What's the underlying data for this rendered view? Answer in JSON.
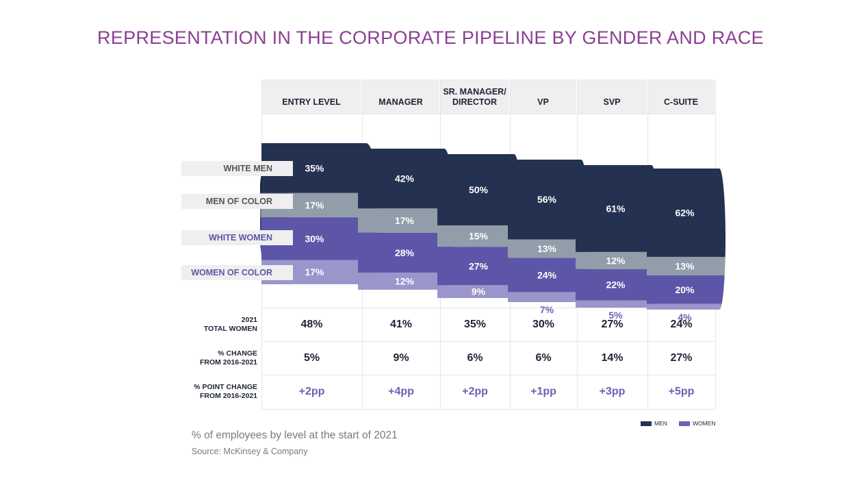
{
  "title": "REPRESENTATION IN THE CORPORATE PIPELINE BY GENDER AND RACE",
  "chart_data": {
    "type": "bar",
    "stacked": true,
    "title": "REPRESENTATION IN THE CORPORATE PIPELINE BY GENDER AND RACE",
    "categories": [
      "ENTRY LEVEL",
      "MANAGER",
      "SR. MANAGER/ DIRECTOR",
      "VP",
      "SVP",
      "C-SUITE"
    ],
    "series": [
      {
        "name": "WHITE MEN",
        "values": [
          35,
          42,
          50,
          56,
          61,
          62
        ],
        "color": "#243150",
        "labels": [
          "35%",
          "42%",
          "50%",
          "56%",
          "61%",
          "62%"
        ]
      },
      {
        "name": "MEN OF COLOR",
        "values": [
          17,
          17,
          15,
          13,
          12,
          13
        ],
        "color": "#929daa",
        "labels": [
          "17%",
          "17%",
          "15%",
          "13%",
          "12%",
          "13%"
        ]
      },
      {
        "name": "WHITE WOMEN",
        "values": [
          30,
          28,
          27,
          24,
          22,
          20
        ],
        "color": "#5d56a8",
        "labels": [
          "30%",
          "28%",
          "27%",
          "24%",
          "22%",
          "20%"
        ]
      },
      {
        "name": "WOMEN OF COLOR",
        "values": [
          17,
          12,
          9,
          7,
          5,
          4
        ],
        "color": "#9a95cb",
        "labels": [
          "17%",
          "12%",
          "9%",
          "7%",
          "5%",
          "4%"
        ]
      }
    ],
    "legend": [
      {
        "name": "MEN",
        "color": "#243150"
      },
      {
        "name": "WOMEN",
        "color": "#6a63b3"
      }
    ],
    "legend_position": "bottom-right"
  },
  "table": {
    "rows": [
      {
        "label_line1": "2021",
        "label_line2": "TOTAL WOMEN",
        "values": [
          "48%",
          "41%",
          "35%",
          "30%",
          "27%",
          "24%"
        ]
      },
      {
        "label_line1": "% CHANGE",
        "label_line2": "FROM 2016-2021",
        "values": [
          "5%",
          "9%",
          "6%",
          "6%",
          "14%",
          "27%"
        ]
      },
      {
        "label_line1": "% POINT CHANGE",
        "label_line2": "FROM 2016-2021",
        "values": [
          "+2pp",
          "+4pp",
          "+2pp",
          "+1pp",
          "+3pp",
          "+5pp"
        ]
      }
    ]
  },
  "footnote": "% of employees by level at the start of 2021",
  "source": "Source: McKinsey & Company"
}
